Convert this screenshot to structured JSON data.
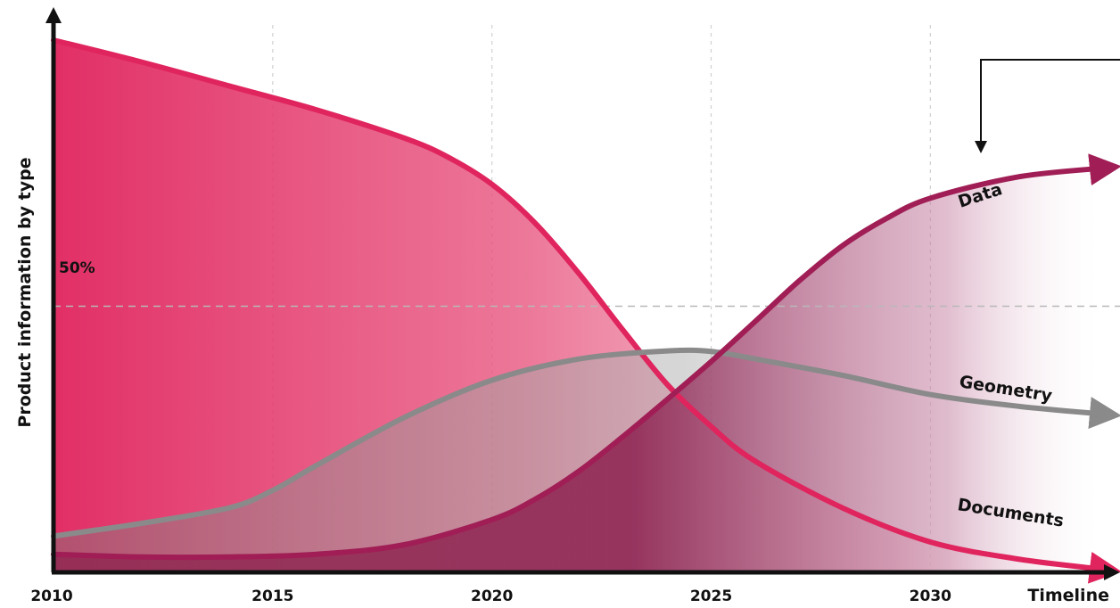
{
  "chart_data": {
    "type": "area",
    "ylabel": "Product information by type",
    "xlabel": "Timeline",
    "x_ticks": [
      "2010",
      "2015",
      "2020",
      "2025",
      "2030"
    ],
    "xlim": [
      2010,
      2034
    ],
    "ylim": [
      0,
      100
    ],
    "reference_line": {
      "value": 50,
      "label": "50%"
    },
    "grid": "dashed vertical at year ticks",
    "colors": {
      "documents": "#e0245e",
      "geometry": "#8a8a8a",
      "data": "#a01e55"
    },
    "series": [
      {
        "name": "Documents",
        "x": [
          2010,
          2012,
          2014,
          2016,
          2018,
          2019,
          2020,
          2021,
          2022,
          2023,
          2024,
          2025,
          2026,
          2028,
          2030,
          2032,
          2034
        ],
        "values": [
          100,
          95.9,
          91.4,
          86.9,
          81.6,
          78,
          72.9,
          65.5,
          56,
          45.4,
          35.3,
          27.4,
          20.9,
          12.1,
          5.7,
          2.5,
          0.5
        ]
      },
      {
        "name": "Geometry",
        "x": [
          2010,
          2012,
          2014,
          2015,
          2016,
          2018,
          2020,
          2022,
          2024,
          2025,
          2026,
          2028,
          2030,
          2032,
          2034
        ],
        "values": [
          6.8,
          9.2,
          12.1,
          15.4,
          20.1,
          29.1,
          36.1,
          40.1,
          41.6,
          41.5,
          40.1,
          37,
          33.4,
          31.2,
          29.7
        ]
      },
      {
        "name": "Data",
        "x": [
          2010,
          2012,
          2014,
          2016,
          2018,
          2020,
          2021,
          2022,
          2023,
          2024,
          2025,
          2026,
          2027,
          2028,
          2029,
          2030,
          2032,
          2034
        ],
        "values": [
          3.4,
          2.9,
          2.9,
          3.4,
          5.2,
          9.9,
          13.8,
          19.1,
          25.6,
          32.5,
          39.6,
          47.1,
          54.7,
          61.4,
          66.5,
          70.3,
          74.3,
          76
        ]
      }
    ]
  }
}
